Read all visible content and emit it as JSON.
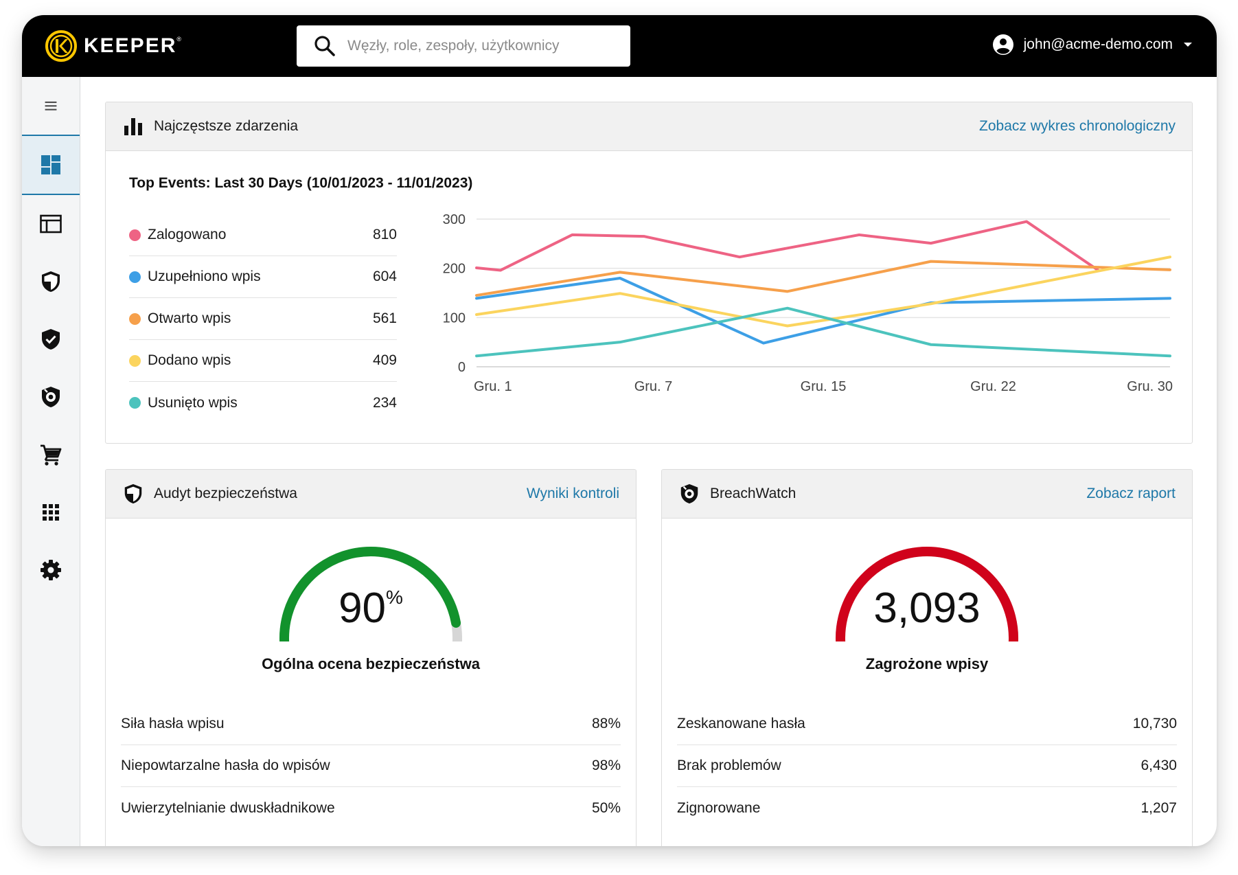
{
  "brand": {
    "name": "KEEPER",
    "trademark": "®",
    "accent": "#ffc700"
  },
  "search": {
    "placeholder": "Węzły, role, zespoły, użytkownicy"
  },
  "user": {
    "email": "john@acme-demo.com"
  },
  "sidebar": {
    "items": [
      {
        "icon": "menu-icon"
      },
      {
        "icon": "dashboard-icon",
        "active": true
      },
      {
        "icon": "admin-console-icon"
      },
      {
        "icon": "security-audit-icon"
      },
      {
        "icon": "compliance-shield-icon"
      },
      {
        "icon": "breachwatch-icon"
      },
      {
        "icon": "cart-icon"
      },
      {
        "icon": "apps-grid-icon"
      },
      {
        "icon": "settings-gear-icon"
      }
    ]
  },
  "events_card": {
    "title": "Najczęstsze zdarzenia",
    "link": "Zobacz wykres chronologiczny",
    "subtitle": "Top Events: Last 30 Days (10/01/2023 - 11/01/2023)",
    "legend": [
      {
        "label": "Zalogowano",
        "value": "810",
        "color": "#ee6384"
      },
      {
        "label": "Uzupełniono wpis",
        "value": "604",
        "color": "#3d9fe6"
      },
      {
        "label": "Otwarto wpis",
        "value": "561",
        "color": "#f6a04b"
      },
      {
        "label": "Dodano wpis",
        "value": "409",
        "color": "#fbd45e"
      },
      {
        "label": "Usunięto wpis",
        "value": "234",
        "color": "#4cc3bd"
      }
    ]
  },
  "chart_data": {
    "type": "line",
    "title": "Top Events: Last 30 Days (10/01/2023 - 11/01/2023)",
    "xlabel": "",
    "ylabel": "",
    "ylim": [
      0,
      300
    ],
    "yticks": [
      "300",
      "200",
      "100",
      "0"
    ],
    "xticks": [
      "Gru. 1",
      "Gru. 7",
      "Gru. 15",
      "Gru. 22",
      "Gru. 30"
    ],
    "grid": true,
    "series": [
      {
        "name": "Zalogowano",
        "color": "#ee6384",
        "points": [
          [
            1,
            201
          ],
          [
            2,
            196
          ],
          [
            5,
            268
          ],
          [
            8,
            265
          ],
          [
            12,
            223
          ],
          [
            17,
            268
          ],
          [
            20,
            251
          ],
          [
            24,
            295
          ],
          [
            27,
            196
          ]
        ]
      },
      {
        "name": "Uzupełniono wpis",
        "color": "#3d9fe6",
        "points": [
          [
            1,
            139
          ],
          [
            7,
            180
          ],
          [
            13,
            48
          ],
          [
            20,
            130
          ],
          [
            30,
            139
          ]
        ]
      },
      {
        "name": "Otwarto wpis",
        "color": "#f6a04b",
        "points": [
          [
            1,
            145
          ],
          [
            7,
            192
          ],
          [
            14,
            153
          ],
          [
            20,
            214
          ],
          [
            30,
            197
          ]
        ]
      },
      {
        "name": "Dodano wpis",
        "color": "#fbd45e",
        "points": [
          [
            1,
            106
          ],
          [
            7,
            149
          ],
          [
            14,
            83
          ],
          [
            20,
            128
          ],
          [
            30,
            223
          ]
        ]
      },
      {
        "name": "Usunięto wpis",
        "color": "#4cc3bd",
        "points": [
          [
            1,
            22
          ],
          [
            7,
            50
          ],
          [
            14,
            119
          ],
          [
            20,
            45
          ],
          [
            30,
            22
          ]
        ]
      }
    ]
  },
  "audit_card": {
    "title": "Audyt bezpieczeństwa",
    "link": "Wyniki kontroli",
    "score_value": "90",
    "score_unit": "%",
    "score_fraction": 0.9,
    "score_color": "#12922c",
    "caption": "Ogólna ocena bezpieczeństwa",
    "stats": [
      {
        "label": "Siła hasła wpisu",
        "value": "88%"
      },
      {
        "label": "Niepowtarzalne hasła do wpisów",
        "value": "98%"
      },
      {
        "label": "Uwierzytelnianie dwuskładnikowe",
        "value": "50%"
      }
    ]
  },
  "breach_card": {
    "title": "BreachWatch",
    "link": "Zobacz raport",
    "value": "3,093",
    "gauge_color": "#d0021b",
    "caption": "Zagrożone wpisy",
    "stats": [
      {
        "label": "Zeskanowane hasła",
        "value": "10,730"
      },
      {
        "label": "Brak problemów",
        "value": "6,430"
      },
      {
        "label": "Zignorowane",
        "value": "1,207"
      }
    ]
  }
}
